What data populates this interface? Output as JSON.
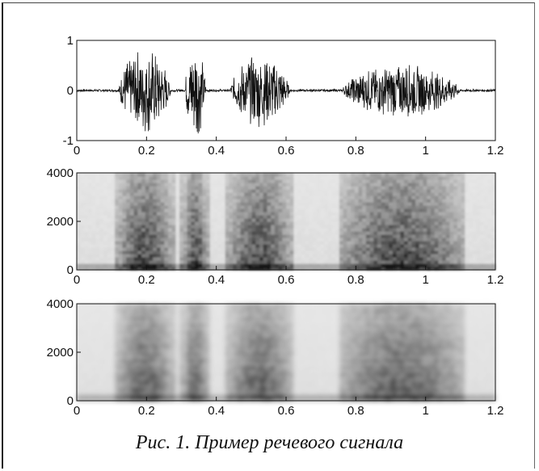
{
  "caption": "Рис. 1. Пример речевого сигнала",
  "chart_data": [
    {
      "type": "line",
      "name": "waveform",
      "xlim": [
        0,
        1.2
      ],
      "ylim": [
        -1,
        1
      ],
      "x_ticks": [
        "0",
        "0.2",
        "0.4",
        "0.6",
        "0.8",
        "1",
        "1.2"
      ],
      "y_ticks": [
        "-1",
        "0",
        "1"
      ],
      "bursts": [
        {
          "start": 0.12,
          "end": 0.27,
          "amp": 0.9
        },
        {
          "start": 0.31,
          "end": 0.37,
          "amp": 1.0
        },
        {
          "start": 0.44,
          "end": 0.61,
          "amp": 0.75
        },
        {
          "start": 0.76,
          "end": 1.1,
          "amp": 0.55
        }
      ]
    },
    {
      "type": "heatmap",
      "name": "spectrogram-1",
      "xlim": [
        0,
        1.2
      ],
      "ylim": [
        0,
        4000
      ],
      "x_ticks": [
        "0",
        "0.2",
        "0.4",
        "0.6",
        "0.8",
        "1",
        "1.2"
      ],
      "y_ticks": [
        "0",
        "2000",
        "4000"
      ],
      "colormap": "grayscale"
    },
    {
      "type": "heatmap",
      "name": "spectrogram-2",
      "xlim": [
        0,
        1.2
      ],
      "ylim": [
        0,
        4000
      ],
      "x_ticks": [
        "0",
        "0.2",
        "0.4",
        "0.6",
        "0.8",
        "1",
        "1.2"
      ],
      "y_ticks": [
        "0",
        "2000",
        "4000"
      ],
      "colormap": "grayscale"
    }
  ]
}
